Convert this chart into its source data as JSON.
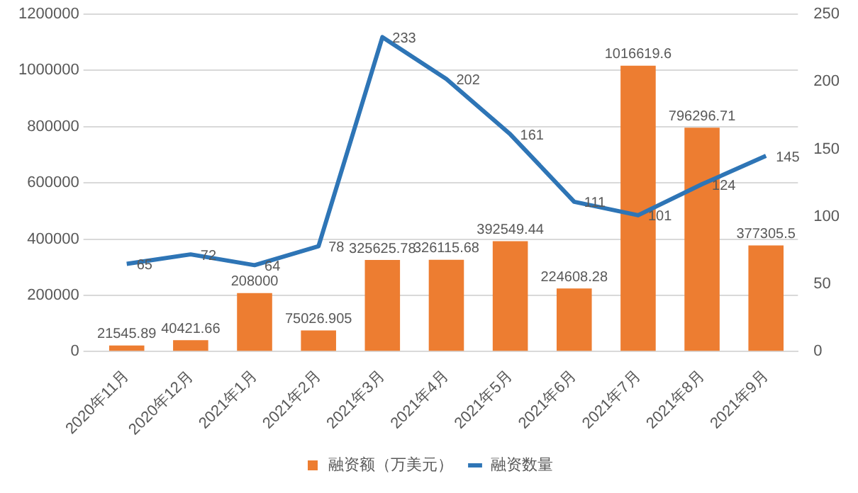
{
  "chart_data": {
    "type": "bar",
    "categories": [
      "2020年11月",
      "2020年12月",
      "2021年1月",
      "2021年2月",
      "2021年3月",
      "2021年4月",
      "2021年5月",
      "2021年6月",
      "2021年7月",
      "2021年8月",
      "2021年9月"
    ],
    "series": [
      {
        "name": "融资额（万美元）",
        "color": "#ed7d31",
        "values": [
          21545.89,
          40421.66,
          208000,
          75026.905,
          325625.78,
          326115.68,
          392549.44,
          224608.28,
          1016619.6,
          796296.71,
          377305.5
        ]
      },
      {
        "name": "融资数量",
        "type": "line",
        "axis": "y2",
        "color": "#2e75b6",
        "values": [
          65,
          72,
          64,
          78,
          233,
          202,
          161,
          111,
          101,
          124,
          145
        ]
      }
    ],
    "ylim": [
      0,
      1200000
    ],
    "yticks": [
      0,
      200000,
      400000,
      600000,
      800000,
      1000000,
      1200000
    ],
    "y2lim": [
      0,
      250
    ],
    "y2ticks": [
      0,
      50,
      100,
      150,
      200,
      250
    ],
    "grid": "y",
    "legend": "bottom",
    "marker": "none",
    "line_style": "solid",
    "data_labels": true
  }
}
